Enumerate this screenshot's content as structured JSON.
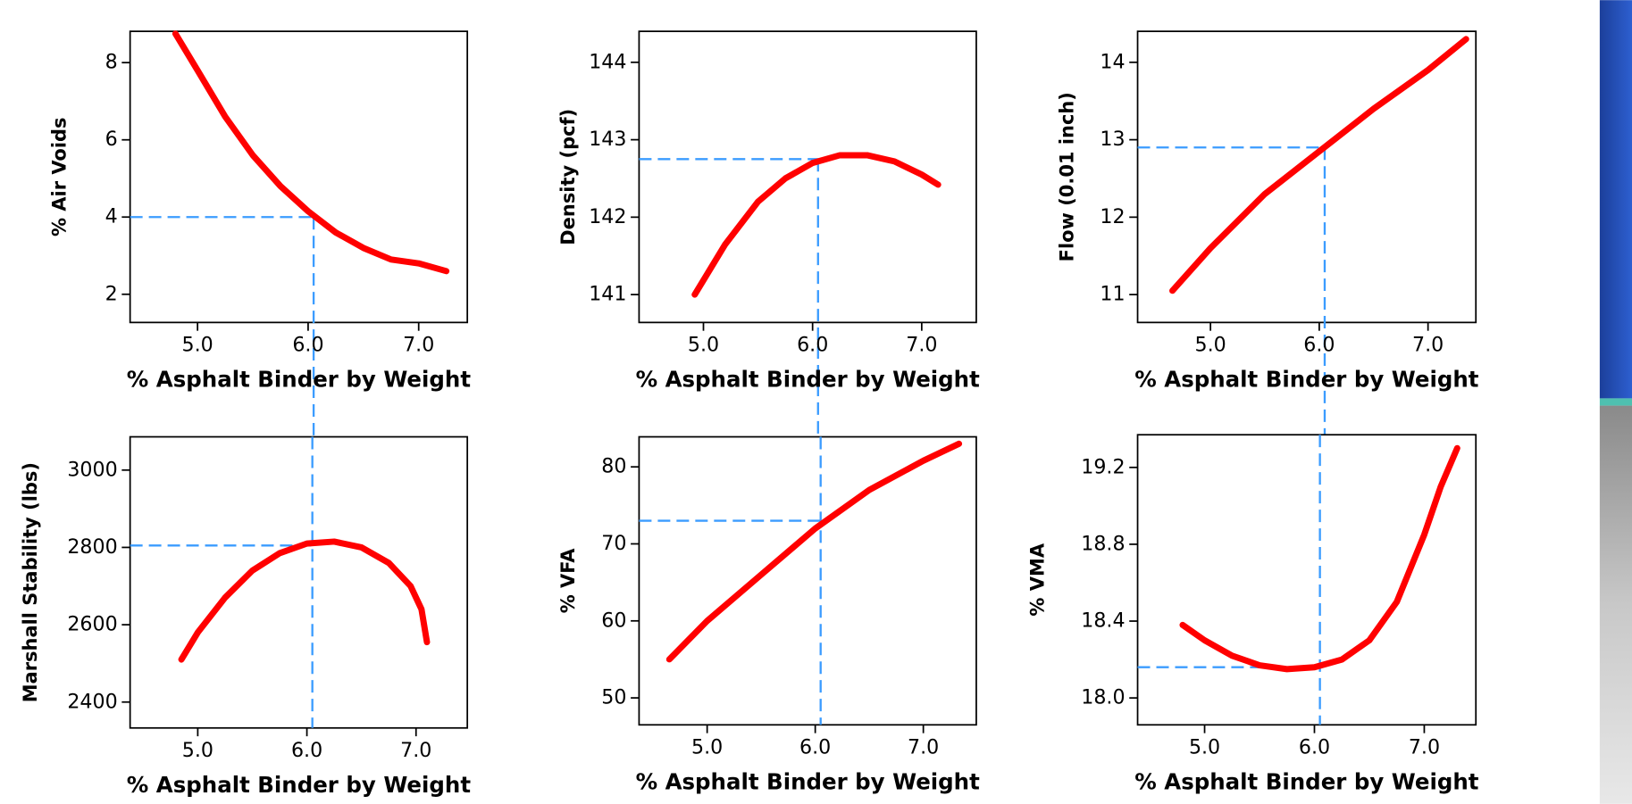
{
  "chart_data": [
    {
      "type": "line",
      "x_label": "% Asphalt Binder by Weight",
      "y_label": "% Air Voids",
      "color": "#ff0000",
      "ref_color": "#3b9cff",
      "x": [
        4.8,
        5.0,
        5.25,
        5.5,
        5.75,
        6.0,
        6.25,
        6.5,
        6.75,
        7.0,
        7.25
      ],
      "values": [
        8.75,
        7.8,
        6.6,
        5.6,
        4.8,
        4.15,
        3.6,
        3.2,
        2.9,
        2.8,
        2.6
      ],
      "xlim": [
        4.39,
        7.44
      ],
      "ylim": [
        1.27,
        8.81
      ],
      "xticks": [
        {
          "value": 5,
          "label": "5.0"
        },
        {
          "value": 6,
          "label": "6.0"
        },
        {
          "value": 7,
          "label": "7.0"
        }
      ],
      "yticks": [
        2,
        4,
        6,
        8
      ],
      "ref_x": 6.05,
      "ref_y": 4
    },
    {
      "type": "line",
      "x_label": "% Asphalt Binder by Weight",
      "y_label": "Density (pcf)",
      "color": "#ff0000",
      "ref_color": "#3b9cff",
      "x": [
        4.92,
        5.2,
        5.5,
        5.75,
        6.0,
        6.25,
        6.5,
        6.75,
        7.0,
        7.15
      ],
      "values": [
        141.0,
        141.65,
        142.2,
        142.5,
        142.7,
        142.8,
        142.8,
        142.72,
        142.55,
        142.42
      ],
      "xlim": [
        4.41,
        7.5
      ],
      "ylim": [
        140.64,
        144.4
      ],
      "xticks": [
        {
          "value": 5,
          "label": "5.0"
        },
        {
          "value": 6,
          "label": "6.0"
        },
        {
          "value": 7,
          "label": "7.0"
        }
      ],
      "yticks": [
        141,
        142,
        143,
        144
      ],
      "ref_x": 6.05,
      "ref_y": 142.75
    },
    {
      "type": "line",
      "x_label": "% Asphalt Binder by Weight",
      "y_label": "Flow (0.01 inch)",
      "color": "#ff0000",
      "ref_color": "#3b9cff",
      "x": [
        4.65,
        5.0,
        5.5,
        6.0,
        6.5,
        7.0,
        7.35
      ],
      "values": [
        11.05,
        11.6,
        12.3,
        12.85,
        13.4,
        13.9,
        14.3
      ],
      "xlim": [
        4.33,
        7.44
      ],
      "ylim": [
        10.64,
        14.4
      ],
      "xticks": [
        {
          "value": 5,
          "label": "5.0"
        },
        {
          "value": 6,
          "label": "6.0"
        },
        {
          "value": 7,
          "label": "7.0"
        }
      ],
      "yticks": [
        11,
        12,
        13,
        14
      ],
      "ref_x": 6.05,
      "ref_y": 12.9
    },
    {
      "type": "line",
      "x_label": "% Asphalt Binder by Weight",
      "y_label": "Marshall Stability (lbs)",
      "color": "#ff0000",
      "ref_color": "#3b9cff",
      "x": [
        4.85,
        5.0,
        5.25,
        5.5,
        5.75,
        6.0,
        6.25,
        6.5,
        6.75,
        6.95,
        7.05,
        7.1
      ],
      "values": [
        2510,
        2580,
        2670,
        2740,
        2785,
        2810,
        2815,
        2800,
        2760,
        2700,
        2640,
        2555
      ],
      "xlim": [
        4.38,
        7.47
      ],
      "ylim": [
        2333,
        3086
      ],
      "xticks": [
        {
          "value": 5,
          "label": "5.0"
        },
        {
          "value": 6,
          "label": "6.0"
        },
        {
          "value": 7,
          "label": "7.0"
        }
      ],
      "yticks": [
        2400,
        2600,
        2800,
        3000
      ],
      "ref_x": 6.05,
      "ref_y": 2805
    },
    {
      "type": "line",
      "x_label": "% Asphalt Binder by Weight",
      "y_label": "% VFA",
      "color": "#ff0000",
      "ref_color": "#3b9cff",
      "x": [
        4.65,
        5.0,
        5.5,
        6.0,
        6.5,
        7.0,
        7.33
      ],
      "values": [
        55,
        60,
        66,
        72,
        77,
        80.8,
        83
      ],
      "xlim": [
        4.37,
        7.49
      ],
      "ylim": [
        46.5,
        83.9
      ],
      "xticks": [
        {
          "value": 5,
          "label": "5.0"
        },
        {
          "value": 6,
          "label": "6.0"
        },
        {
          "value": 7,
          "label": "7.0"
        }
      ],
      "yticks": [
        50,
        60,
        70,
        80
      ],
      "ref_x": 6.05,
      "ref_y": 73
    },
    {
      "type": "line",
      "x_label": "% Asphalt Binder by Weight",
      "y_label": "% VMA",
      "color": "#ff0000",
      "ref_color": "#3b9cff",
      "x": [
        4.8,
        5.0,
        5.25,
        5.5,
        5.75,
        6.0,
        6.25,
        6.5,
        6.75,
        7.0,
        7.15,
        7.3
      ],
      "values": [
        18.38,
        18.3,
        18.22,
        18.17,
        18.15,
        18.16,
        18.2,
        18.3,
        18.5,
        18.85,
        19.1,
        19.3
      ],
      "xlim": [
        4.39,
        7.47
      ],
      "ylim": [
        17.86,
        19.37
      ],
      "xticks": [
        {
          "value": 5,
          "label": "5.0"
        },
        {
          "value": 6,
          "label": "6.0"
        },
        {
          "value": 7,
          "label": "7.0"
        }
      ],
      "yticks": [
        {
          "value": 18,
          "label": "18.0"
        },
        18.4,
        18.8,
        19.2
      ],
      "ref_x": 6.05,
      "ref_y": 18.16
    }
  ]
}
